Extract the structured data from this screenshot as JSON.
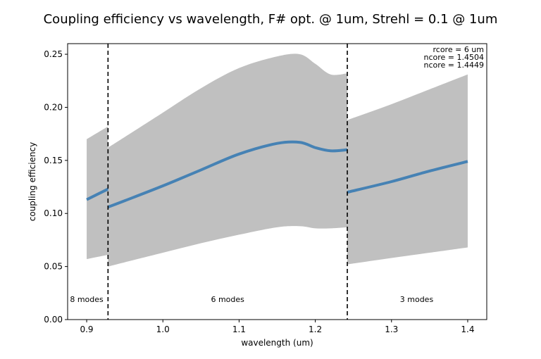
{
  "chart_data": {
    "type": "line",
    "title": "Coupling efficiency vs wavelength, F# opt. @ 1um, Strehl = 0.1 @ 1um",
    "xlabel": "wavelength (um)",
    "ylabel": "coupling efficiency",
    "xlim": [
      0.875,
      1.425
    ],
    "ylim": [
      0.0,
      0.26
    ],
    "xticks": [
      0.9,
      1.0,
      1.1,
      1.2,
      1.3,
      1.4
    ],
    "xtick_labels": [
      "0.9",
      "1.0",
      "1.1",
      "1.2",
      "1.3",
      "1.4"
    ],
    "yticks": [
      0.0,
      0.05,
      0.1,
      0.15,
      0.2,
      0.25
    ],
    "ytick_labels": [
      "0.00",
      "0.05",
      "0.10",
      "0.15",
      "0.20",
      "0.25"
    ],
    "grid": false,
    "line_color": "#4682b4",
    "band_color": "#c0c0c0",
    "cutoff_wavelengths": [
      0.928,
      1.242
    ],
    "annotations": [
      "rcore = 6 um",
      "ncore = 1.4504",
      "ncore = 1.4449"
    ],
    "regions": [
      {
        "label": "8 modes",
        "x": 0.9
      },
      {
        "label": "6 modes",
        "x": 1.085
      },
      {
        "label": "3 modes",
        "x": 1.333
      }
    ],
    "segments": [
      {
        "name": "8 modes",
        "x": [
          0.9,
          0.928
        ],
        "y": [
          0.113,
          0.123
        ],
        "upper": [
          0.17,
          0.182
        ],
        "lower": [
          0.057,
          0.061
        ]
      },
      {
        "name": "6 modes",
        "x": [
          0.928,
          0.95,
          1.0,
          1.05,
          1.1,
          1.15,
          1.18,
          1.2,
          1.22,
          1.242
        ],
        "y": [
          0.106,
          0.112,
          0.126,
          0.141,
          0.156,
          0.166,
          0.167,
          0.162,
          0.159,
          0.16
        ],
        "upper": [
          0.162,
          0.172,
          0.195,
          0.218,
          0.237,
          0.248,
          0.25,
          0.241,
          0.231,
          0.232
        ],
        "lower": [
          0.05,
          0.054,
          0.063,
          0.072,
          0.08,
          0.087,
          0.088,
          0.086,
          0.086,
          0.087
        ]
      },
      {
        "name": "3 modes",
        "x": [
          1.242,
          1.3,
          1.35,
          1.4
        ],
        "y": [
          0.12,
          0.13,
          0.14,
          0.149
        ],
        "upper": [
          0.188,
          0.203,
          0.217,
          0.231
        ],
        "lower": [
          0.052,
          0.058,
          0.063,
          0.068
        ]
      }
    ]
  }
}
